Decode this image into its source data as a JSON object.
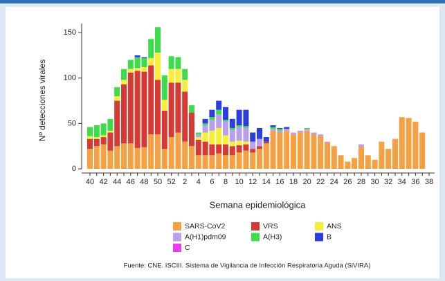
{
  "chart_data": {
    "type": "stacked_bar",
    "y_label": "Nº detecciones virales",
    "x_label": "Semana epidemiológica",
    "source": "Fuente: CNE. ISCIII. Sistema de Vigilancia de Infección Respiratoria Aguda (SiVIRA)",
    "categories": [
      "40",
      null,
      "42",
      null,
      "44",
      null,
      "46",
      null,
      "48",
      null,
      "50",
      null,
      "52",
      null,
      "2",
      null,
      "4",
      null,
      "6",
      null,
      "8",
      null,
      "10",
      null,
      "12",
      null,
      "14",
      null,
      "16",
      null,
      "18",
      null,
      "20",
      null,
      "22",
      null,
      "24",
      null,
      "26",
      null,
      "28",
      null,
      "30",
      null,
      "32",
      null,
      "34",
      null,
      "36",
      null,
      "38"
    ],
    "ylim": [
      0,
      160
    ],
    "yticks": [
      0,
      50,
      100,
      150
    ],
    "series": [
      {
        "name": "SARS-CoV2",
        "color": "#f5a043",
        "values": [
          22,
          25,
          27,
          20,
          25,
          28,
          28,
          23,
          24,
          38,
          38,
          22,
          35,
          40,
          30,
          25,
          15,
          15,
          15,
          17,
          15,
          15,
          18,
          20,
          18,
          22,
          28,
          42,
          40,
          42,
          38,
          40,
          42,
          38,
          36,
          29,
          25,
          15,
          8,
          12,
          24,
          15,
          10,
          30,
          22,
          33,
          57,
          56,
          52,
          40,
          0
        ]
      },
      {
        "name": "VRS",
        "color": "#d63a35",
        "values": [
          11,
          8,
          8,
          20,
          50,
          65,
          78,
          85,
          83,
          76,
          60,
          42,
          60,
          55,
          55,
          37,
          17,
          15,
          12,
          10,
          12,
          10,
          8,
          7,
          4,
          3,
          2,
          0,
          0,
          0,
          0,
          0,
          0,
          0,
          0,
          0,
          0,
          0,
          0,
          0,
          0,
          0,
          0,
          0,
          0,
          0,
          0,
          0,
          0,
          0,
          0
        ]
      },
      {
        "name": "ANS",
        "color": "#f7ee3a",
        "values": [
          3,
          2,
          2,
          2,
          5,
          5,
          4,
          3,
          5,
          8,
          30,
          12,
          15,
          15,
          13,
          0,
          3,
          10,
          15,
          18,
          10,
          5,
          5,
          3,
          0,
          0,
          0,
          0,
          0,
          0,
          0,
          0,
          0,
          0,
          0,
          0,
          0,
          0,
          0,
          0,
          0,
          0,
          0,
          0,
          0,
          0,
          0,
          0,
          0,
          0,
          0
        ]
      },
      {
        "name": "A(H1)pdm09",
        "color": "#b9a0ea",
        "values": [
          0,
          0,
          0,
          0,
          0,
          0,
          0,
          0,
          0,
          0,
          0,
          0,
          0,
          0,
          0,
          0,
          3,
          8,
          12,
          15,
          15,
          13,
          15,
          15,
          8,
          8,
          0,
          2,
          2,
          2,
          2,
          2,
          2,
          2,
          2,
          1,
          0,
          0,
          0,
          0,
          3,
          0,
          0,
          0,
          0,
          0,
          0,
          0,
          0,
          0,
          0
        ]
      },
      {
        "name": "A(H3)",
        "color": "#3ddc4a",
        "values": [
          10,
          13,
          13,
          13,
          10,
          12,
          10,
          12,
          10,
          21,
          28,
          27,
          14,
          13,
          12,
          8,
          2,
          2,
          3,
          5,
          2,
          2,
          2,
          2,
          0,
          0,
          0,
          2,
          2,
          0,
          0,
          0,
          1,
          0,
          0,
          0,
          0,
          0,
          0,
          0,
          0,
          0,
          0,
          0,
          0,
          0,
          0,
          0,
          0,
          0,
          0
        ]
      },
      {
        "name": "B",
        "color": "#2b3fe0",
        "values": [
          0,
          0,
          0,
          0,
          0,
          0,
          0,
          2,
          1,
          0,
          0,
          0,
          0,
          0,
          0,
          0,
          0,
          5,
          8,
          10,
          14,
          10,
          17,
          18,
          10,
          12,
          5,
          2,
          1,
          2,
          0,
          0,
          0,
          0,
          0,
          0,
          0,
          0,
          0,
          0,
          0,
          0,
          0,
          0,
          0,
          0,
          0,
          0,
          0,
          0,
          0
        ]
      },
      {
        "name": "C",
        "color": "#e83ee8",
        "values": [
          0,
          0,
          0,
          0,
          0,
          0,
          0,
          0,
          0,
          0,
          0,
          0,
          0,
          0,
          0,
          0,
          0,
          0,
          0,
          0,
          0,
          0,
          0,
          0,
          0,
          0,
          0,
          0,
          0,
          0,
          0,
          0,
          0,
          0,
          0,
          0,
          0,
          0,
          0,
          0,
          0,
          0,
          0,
          0,
          0,
          0,
          0,
          0,
          0,
          0,
          0
        ]
      }
    ]
  }
}
